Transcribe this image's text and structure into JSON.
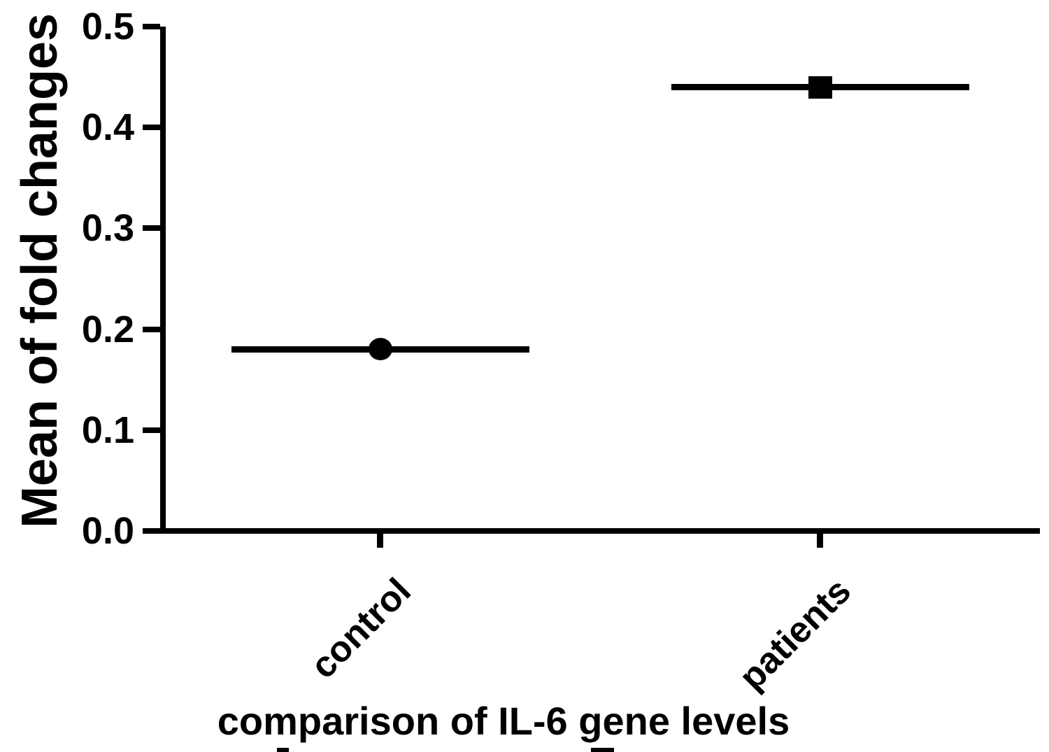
{
  "chart_data": {
    "type": "scatter",
    "title": "",
    "categories": [
      "control",
      "patients"
    ],
    "series": [
      {
        "name": "control",
        "marker": "circle",
        "value": 0.18,
        "mean_line": true
      },
      {
        "name": "patients",
        "marker": "square",
        "value": 0.44,
        "mean_line": true
      }
    ],
    "xlabel": "comparison of IL-6 gene levels",
    "ylabel": "Mean of fold changes",
    "ylim": [
      0.0,
      0.5
    ],
    "ytick_labels": [
      "0.0",
      "0.1",
      "0.2",
      "0.3",
      "0.4",
      "0.5"
    ],
    "grid": false,
    "legend_position": "none",
    "axis_color": "#000000",
    "marker_color": "#000000",
    "background_color": "#ffffff"
  }
}
